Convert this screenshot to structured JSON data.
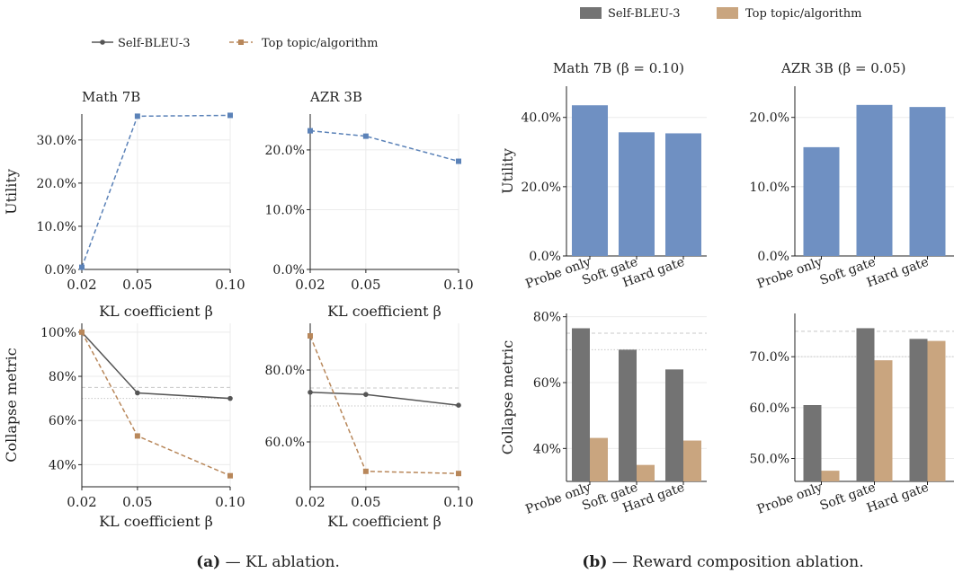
{
  "colors": {
    "utility": "#5b82b8",
    "self_bleu": "#555555",
    "top_topic": "#b8875a",
    "self_bleu_bar": "#737373",
    "top_topic_bar": "#c9a57f",
    "utility_bar": "#6f90c2",
    "ref_line": "#c8c8c8"
  },
  "legend_a": {
    "self_bleu": "Self-BLEU-3",
    "top_topic": "Top topic/algorithm"
  },
  "legend_b": {
    "self_bleu": "Self-BLEU-3",
    "top_topic": "Top topic/algorithm"
  },
  "captions": {
    "a": {
      "label": "(a)",
      "text": " — KL ablation."
    },
    "b": {
      "label": "(b)",
      "text": " — Reward composition ablation."
    }
  },
  "chart_data": [
    {
      "id": "a_utility_math",
      "type": "line",
      "title": "Math 7B",
      "ylabel": "Utility",
      "xlabel": "KL coefficient β",
      "x": [
        0.02,
        0.05,
        0.1
      ],
      "xticks": [
        "0.02",
        "0.05",
        "0.10"
      ],
      "ylim": [
        0,
        0.36
      ],
      "yticks": [
        0,
        0.1,
        0.2,
        0.3
      ],
      "ytick_labels": [
        "0.0%",
        "10.0%",
        "20.0%",
        "30.0%"
      ],
      "series": [
        {
          "key": "utility",
          "values": [
            0.005,
            0.355,
            0.357
          ]
        }
      ]
    },
    {
      "id": "a_utility_azr",
      "type": "line",
      "title": "AZR 3B",
      "ylabel": "",
      "xlabel": "KL coefficient β",
      "x": [
        0.02,
        0.05,
        0.1
      ],
      "xticks": [
        "0.02",
        "0.05",
        "0.10"
      ],
      "ylim": [
        0,
        0.26
      ],
      "yticks": [
        0,
        0.1,
        0.2
      ],
      "ytick_labels": [
        "0.0%",
        "10.0%",
        "20.0%"
      ],
      "series": [
        {
          "key": "utility",
          "values": [
            0.232,
            0.223,
            0.181
          ]
        }
      ]
    },
    {
      "id": "a_collapse_math",
      "type": "line",
      "title": "",
      "ylabel": "Collapse metric",
      "xlabel": "KL coefficient β",
      "x": [
        0.02,
        0.05,
        0.1
      ],
      "xticks": [
        "0.02",
        "0.05",
        "0.10"
      ],
      "ylim": [
        0.3,
        1.04
      ],
      "yticks": [
        0.4,
        0.6,
        0.8,
        1.0
      ],
      "ytick_labels": [
        "40%",
        "60%",
        "80%",
        "100%"
      ],
      "ref_lines": [
        0.75,
        0.7
      ],
      "series": [
        {
          "key": "self_bleu",
          "values": [
            1.0,
            0.725,
            0.7
          ]
        },
        {
          "key": "top_topic",
          "values": [
            1.0,
            0.53,
            0.35
          ]
        }
      ]
    },
    {
      "id": "a_collapse_azr",
      "type": "line",
      "title": "",
      "ylabel": "",
      "xlabel": "KL coefficient β",
      "x": [
        0.02,
        0.05,
        0.1
      ],
      "xticks": [
        "0.02",
        "0.05",
        "0.10"
      ],
      "ylim": [
        0.475,
        0.93
      ],
      "yticks": [
        0.6,
        0.8
      ],
      "ytick_labels": [
        "60.0%",
        "80.0%"
      ],
      "ref_lines": [
        0.75,
        0.7
      ],
      "series": [
        {
          "key": "self_bleu",
          "values": [
            0.738,
            0.732,
            0.702
          ]
        },
        {
          "key": "top_topic",
          "values": [
            0.895,
            0.518,
            0.512
          ]
        }
      ]
    },
    {
      "id": "b_utility_math",
      "type": "bar",
      "title": "Math 7B (β = 0.10)",
      "ylabel": "Utility",
      "categories": [
        "Probe only",
        "Soft gate",
        "Hard gate"
      ],
      "ylim": [
        0,
        0.49
      ],
      "yticks": [
        0,
        0.2,
        0.4
      ],
      "ytick_labels": [
        "0.0%",
        "20.0%",
        "40.0%"
      ],
      "series": [
        {
          "key": "utility",
          "values": [
            0.435,
            0.357,
            0.354
          ]
        }
      ]
    },
    {
      "id": "b_utility_azr",
      "type": "bar",
      "title": "AZR 3B (β = 0.05)",
      "ylabel": "",
      "categories": [
        "Probe only",
        "Soft gate",
        "Hard gate"
      ],
      "ylim": [
        0,
        0.245
      ],
      "yticks": [
        0,
        0.1,
        0.2
      ],
      "ytick_labels": [
        "0.0%",
        "10.0%",
        "20.0%"
      ],
      "series": [
        {
          "key": "utility",
          "values": [
            0.157,
            0.218,
            0.215
          ]
        }
      ]
    },
    {
      "id": "b_collapse_math",
      "type": "bar",
      "title": "",
      "ylabel": "Collapse metric",
      "categories": [
        "Probe only",
        "Soft gate",
        "Hard gate"
      ],
      "ylim": [
        0.3,
        0.81
      ],
      "yticks": [
        0.4,
        0.6,
        0.8
      ],
      "ytick_labels": [
        "40%",
        "60%",
        "80%"
      ],
      "ref_lines": [
        0.75,
        0.7
      ],
      "series": [
        {
          "key": "self_bleu",
          "values": [
            0.765,
            0.7,
            0.64
          ]
        },
        {
          "key": "top_topic",
          "values": [
            0.432,
            0.35,
            0.424
          ]
        }
      ]
    },
    {
      "id": "b_collapse_azr",
      "type": "bar",
      "title": "",
      "ylabel": "",
      "categories": [
        "Probe only",
        "Soft gate",
        "Hard gate"
      ],
      "ylim": [
        0.455,
        0.785
      ],
      "yticks": [
        0.5,
        0.6,
        0.7
      ],
      "ytick_labels": [
        "50.0%",
        "60.0%",
        "70.0%"
      ],
      "ref_lines": [
        0.75,
        0.7
      ],
      "series": [
        {
          "key": "self_bleu",
          "values": [
            0.605,
            0.756,
            0.735
          ]
        },
        {
          "key": "top_topic",
          "values": [
            0.476,
            0.693,
            0.731
          ]
        }
      ]
    }
  ]
}
